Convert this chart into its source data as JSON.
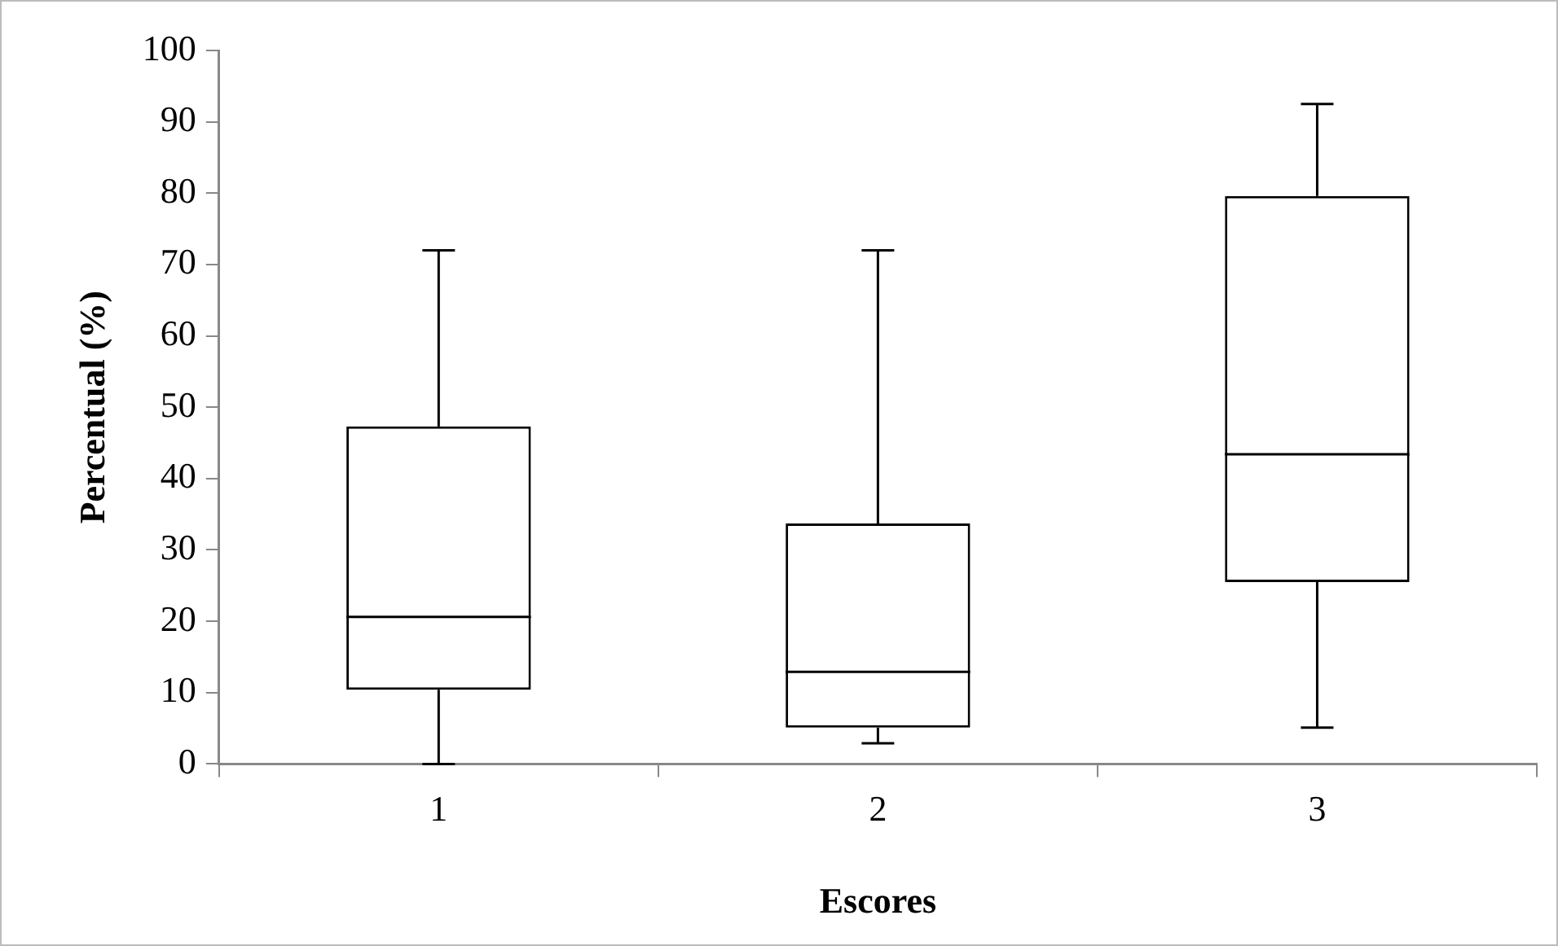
{
  "chart_data": {
    "type": "box",
    "xlabel": "Escores",
    "ylabel": "Percentual (%)",
    "categories": [
      "1",
      "2",
      "3"
    ],
    "boxes": [
      {
        "low": 0,
        "q1": 10.4,
        "median": 20.6,
        "q3": 47.3,
        "high": 72
      },
      {
        "low": 2.9,
        "q1": 5.1,
        "median": 12.9,
        "q3": 33.7,
        "high": 72
      },
      {
        "low": 5.1,
        "q1": 25.5,
        "median": 43.4,
        "q3": 79.6,
        "high": 92.5
      }
    ],
    "ylim": [
      0,
      100
    ],
    "yticks": [
      0,
      10,
      20,
      30,
      40,
      50,
      60,
      70,
      80,
      90,
      100
    ],
    "grid": false,
    "legend": false
  }
}
